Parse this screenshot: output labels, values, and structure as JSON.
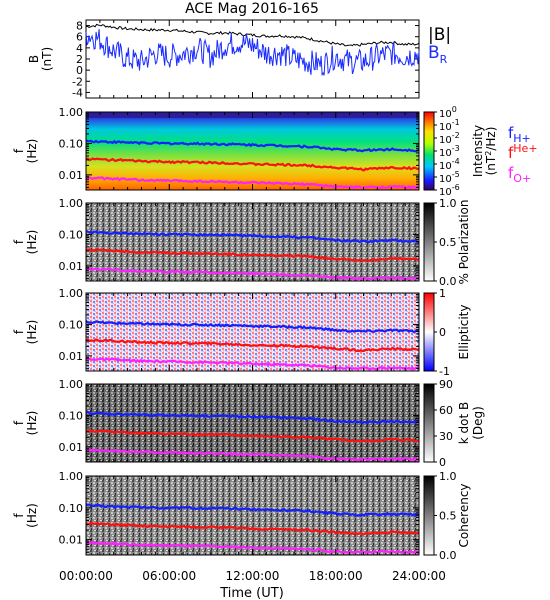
{
  "title": "ACE Mag 2016-165",
  "colors": {
    "b_total": "#000000",
    "b_r": "#1a2cff",
    "f_h": "#1420ff",
    "f_he": "#ff1010",
    "f_o": "#ff20ff"
  },
  "time_axis": {
    "label": "Time (UT)",
    "ticks": [
      "00:00:00",
      "06:00:00",
      "12:00:00",
      "18:00:00",
      "24:00:00"
    ]
  },
  "freq_axis": {
    "label": "f",
    "unit": "(Hz)",
    "ticks": [
      "1.00",
      "0.10",
      "0.01"
    ]
  },
  "legend_b": {
    "total": "|B|",
    "radial": "B",
    "radial_sub": "R"
  },
  "legend_freq": [
    {
      "base": "f",
      "sub": "H+",
      "color": "#1420ff"
    },
    {
      "base": "f",
      "sup": "He+",
      "color": "#ff1010"
    },
    {
      "base": "f",
      "sub": "O+",
      "color": "#ff20ff"
    }
  ],
  "chart_data": [
    {
      "type": "line",
      "ylabel": "B",
      "yunit": "(nT)",
      "ylim": [
        -5,
        9
      ],
      "yticks": [
        "8",
        "6",
        "4",
        "2",
        "0",
        "-2",
        "-4"
      ],
      "x_hours": [
        0,
        1,
        2,
        3,
        4,
        5,
        6,
        7,
        8,
        9,
        10,
        11,
        12,
        13,
        14,
        15,
        16,
        17,
        18,
        19,
        20,
        21,
        22,
        23,
        24
      ],
      "series": [
        {
          "name": "|B|",
          "values": [
            7.8,
            8.1,
            7.7,
            7.4,
            7.3,
            7.2,
            7.2,
            7.0,
            6.8,
            6.6,
            6.7,
            6.5,
            6.3,
            6.1,
            6.2,
            6.0,
            5.7,
            5.2,
            4.7,
            4.3,
            4.6,
            4.9,
            5.0,
            4.6,
            4.7
          ]
        },
        {
          "name": "B_R",
          "values": [
            6.5,
            5.5,
            3.5,
            2.0,
            1.5,
            3.0,
            2.5,
            3.0,
            4.0,
            2.5,
            4.5,
            5.0,
            4.5,
            3.0,
            3.0,
            2.0,
            1.5,
            1.0,
            2.5,
            1.5,
            1.5,
            2.5,
            3.0,
            2.5,
            3.0
          ]
        }
      ]
    },
    {
      "type": "heatmap",
      "ylabel": "f",
      "yunit": "(Hz)",
      "scale": "log",
      "colorbar_label": "Intensity",
      "colorbar_unit": "(nT",
      "colorbar_unit_sup": "2",
      "colorbar_unit_tail": "/Hz)",
      "colorbar_ticks": [
        {
          "base": "10",
          "exp": "0"
        },
        {
          "base": "10",
          "exp": "-1"
        },
        {
          "base": "10",
          "exp": "-2"
        },
        {
          "base": "10",
          "exp": "-3"
        },
        {
          "base": "10",
          "exp": "-4"
        },
        {
          "base": "10",
          "exp": "-5"
        },
        {
          "base": "10",
          "exp": "-6"
        }
      ],
      "clim": [
        -6,
        0
      ]
    },
    {
      "type": "heatmap",
      "ylabel": "f",
      "yunit": "(Hz)",
      "colorbar_label": "% Polarization",
      "colorbar_ticks": [
        "1.0",
        "0.5",
        "0.0"
      ],
      "clim": [
        0,
        1
      ]
    },
    {
      "type": "heatmap",
      "ylabel": "f",
      "yunit": "(Hz)",
      "colorbar_label": "Ellipticity",
      "colorbar_ticks": [
        "1",
        "0",
        "-1"
      ],
      "clim": [
        -1,
        1
      ]
    },
    {
      "type": "heatmap",
      "ylabel": "f",
      "yunit": "(Hz)",
      "colorbar_label": "k dot B",
      "colorbar_unit": "(Deg)",
      "colorbar_ticks": [
        "90",
        "60",
        "30",
        "0"
      ],
      "clim": [
        0,
        90
      ]
    },
    {
      "type": "heatmap",
      "ylabel": "f",
      "yunit": "(Hz)",
      "colorbar_label": "Coherency",
      "colorbar_ticks": [
        "1.0",
        "0.5",
        "0.0"
      ],
      "clim": [
        0,
        1
      ]
    }
  ],
  "gyro_lines": {
    "x_hours": [
      0,
      2,
      4,
      5.6,
      6,
      8,
      10,
      12,
      14,
      16,
      18,
      20,
      22,
      24
    ],
    "f_h": [
      0.12,
      0.11,
      0.105,
      0.1,
      0.1,
      0.098,
      0.095,
      0.09,
      0.085,
      0.08,
      0.065,
      0.06,
      0.065,
      0.06
    ],
    "f_he": [
      0.032,
      0.03,
      0.027,
      0.026,
      0.026,
      0.025,
      0.024,
      0.022,
      0.021,
      0.02,
      0.017,
      0.015,
      0.017,
      0.016
    ],
    "f_o": [
      0.008,
      0.0075,
      0.0068,
      0.0066,
      0.0066,
      0.0063,
      0.006,
      0.0056,
      0.0053,
      0.005,
      0.0042,
      0.004,
      0.0042,
      0.004
    ]
  }
}
